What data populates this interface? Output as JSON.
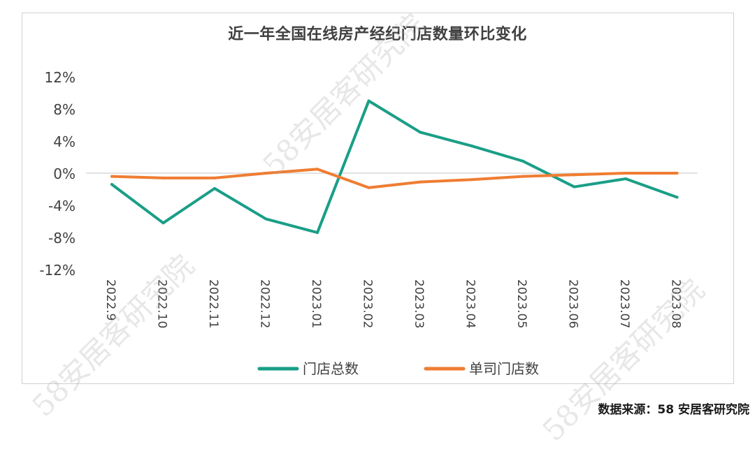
{
  "chart_data": {
    "type": "line",
    "title": "近一年全国在线房产经纪门店数量环比变化",
    "categories": [
      "2022.9",
      "2022.10",
      "2022.11",
      "2022.12",
      "2023.01",
      "2023.02",
      "2023.03",
      "2023.04",
      "2023.05",
      "2023.06",
      "2023.07",
      "2023.08"
    ],
    "yticks": [
      "12%",
      "8%",
      "4%",
      "0%",
      "-4%",
      "-8%",
      "-12%"
    ],
    "ylim": [
      -12,
      12
    ],
    "series": [
      {
        "name": "门店总数",
        "color": "#1a9e87",
        "values": [
          -1.4,
          -6.2,
          -1.9,
          -5.7,
          -7.4,
          9.0,
          5.1,
          3.4,
          1.5,
          -1.7,
          -0.7,
          -3.0
        ]
      },
      {
        "name": "单司门店数",
        "color": "#ef7d32",
        "values": [
          -0.4,
          -0.6,
          -0.6,
          0.0,
          0.5,
          -1.8,
          -1.1,
          -0.8,
          -0.4,
          -0.2,
          0.0,
          0.0
        ]
      }
    ],
    "legend": "bottom-center",
    "grid": false
  },
  "watermark": "58安居客研究院",
  "source": "数据来源：58 安居客研究院"
}
